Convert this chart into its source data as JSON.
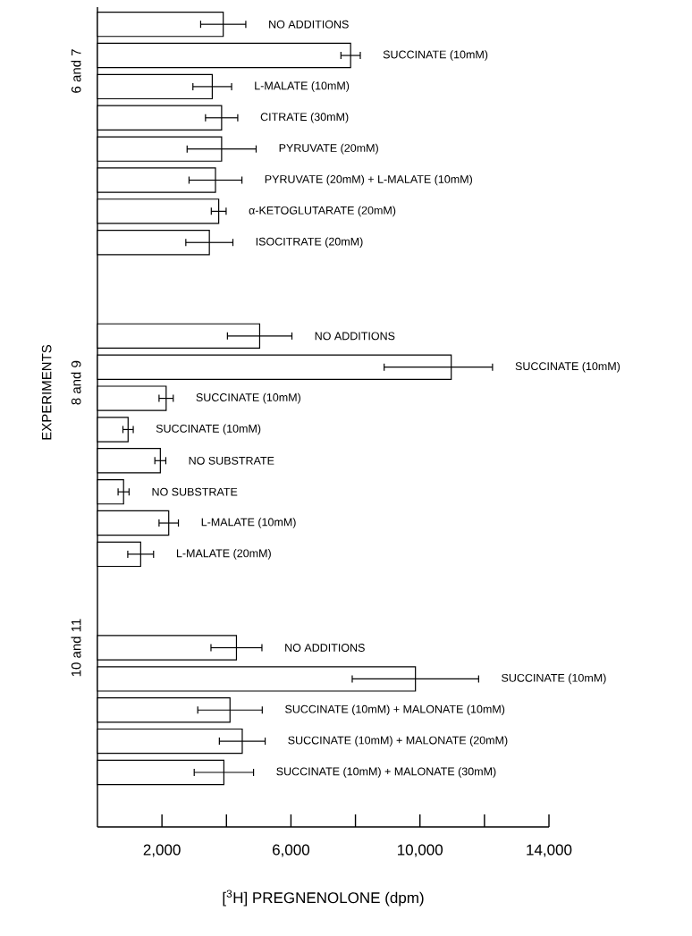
{
  "chart_data": {
    "type": "bar",
    "orientation": "horizontal",
    "xlabel": "[$^{3}$H] PREGNENOLONE (dpm)",
    "ylabel": "EXPERIMENTS",
    "annotations": [
      "6 and 7",
      "8 and 9",
      "10 and 11"
    ],
    "categories": [
      "NO ADDITIONS",
      "SUCCINATE (10mM)",
      "L-MALATE (10mM)",
      "CITRATE (30mM)",
      "PYRUVATE (20mM)",
      "PYRUVATE (20mM) + L-MALATE (10mM)",
      "α-KETOGLUTARATE (20mM)",
      "ISOCITRATE (20mM)",
      null,
      null,
      "NO ADDITIONS",
      "SUCCINATE (10mM)",
      "SUCCINATE (10mM)",
      "SUCCINATE (10mM)",
      "NO SUBSTRATE",
      "NO SUBSTRATE",
      "L-MALATE (10mM)",
      "L-MALATE (20mM)",
      null,
      null,
      "NO ADDITIONS",
      "SUCCINATE (10mM)",
      "SUCCINATE (10mM) + MALONATE (10mM)",
      "SUCCINATE (10mM) + MALONATE (20mM)",
      "SUCCINATE (10mM) + MALONATE (30mM)"
    ],
    "values": [
      3900,
      7850,
      3560,
      3850,
      3850,
      3660,
      3760,
      3470,
      null,
      null,
      5030,
      10970,
      2130,
      950,
      1950,
      810,
      2210,
      1340,
      null,
      null,
      4310,
      9860,
      4110,
      4490,
      3920
    ],
    "errors": [
      700,
      300,
      600,
      500,
      1070,
      820,
      230,
      730,
      null,
      null,
      1000,
      [
        8890,
        12250
      ],
      220,
      160,
      170,
      170,
      300,
      400,
      null,
      null,
      790,
      1960,
      1000,
      710,
      920
    ],
    "color": "#ffffff",
    "xlim": [
      0,
      14000
    ],
    "xticks": [
      {
        "value": 2000,
        "label": "2,000"
      },
      {
        "value": 4000,
        "label": null
      },
      {
        "value": 6000,
        "label": "6,000"
      },
      {
        "value": 8000,
        "label": null
      },
      {
        "value": 10000,
        "label": "10,000"
      },
      {
        "value": 12000,
        "label": null
      },
      {
        "value": 14000,
        "label": "14,000"
      }
    ]
  }
}
